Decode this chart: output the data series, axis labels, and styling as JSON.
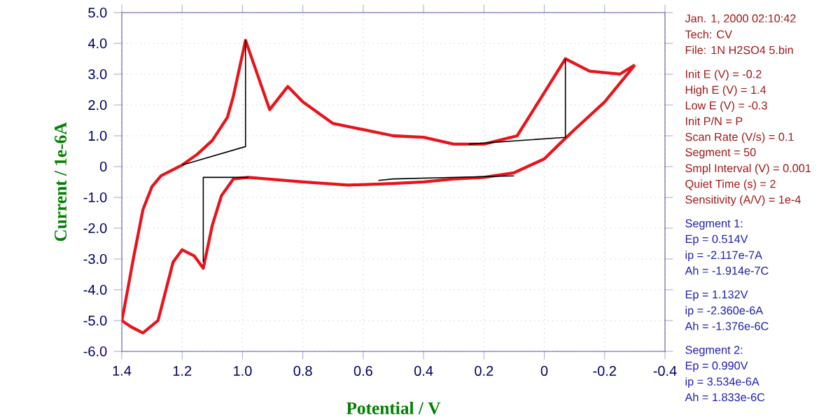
{
  "chart_data": {
    "type": "line",
    "xlabel": "Potential / V",
    "ylabel": "Current / 1e-6A",
    "xlim": [
      1.4,
      -0.4
    ],
    "ylim": [
      -6,
      5
    ],
    "xticks": [
      1.4,
      1.2,
      {
        "value": 1,
        "label": "1.0"
      },
      0.8,
      0.6,
      0.4,
      0.2,
      0,
      -0.2,
      -0.4
    ],
    "yticks": [
      {
        "value": 5,
        "label": "5.0"
      },
      {
        "value": 4,
        "label": "4.0"
      },
      {
        "value": 3,
        "label": "3.0"
      },
      {
        "value": 2,
        "label": "2.0"
      },
      {
        "value": 1,
        "label": "1.0"
      },
      0,
      {
        "value": -1,
        "label": "-1.0"
      },
      {
        "value": -2,
        "label": "-2.0"
      },
      {
        "value": -3,
        "label": "-3.0"
      },
      {
        "value": -4,
        "label": "-4.0"
      },
      {
        "value": -5,
        "label": "-5.0"
      },
      {
        "value": -6,
        "label": "-6.0"
      }
    ],
    "grid": true,
    "series": [
      {
        "color": "#e8141c",
        "x": [
          -0.3,
          -0.25,
          -0.15,
          -0.07,
          0.0,
          0.09,
          0.2,
          0.3,
          0.4,
          0.5,
          0.6,
          0.7,
          0.8,
          0.85,
          0.91,
          0.99,
          1.03,
          1.05,
          1.1,
          1.15,
          1.2,
          1.27,
          1.3,
          1.33,
          1.36,
          1.39,
          1.4
        ],
        "values": [
          3.3,
          3.0,
          3.1,
          3.5,
          2.4,
          1.0,
          0.73,
          0.73,
          0.95,
          1.0,
          1.2,
          1.4,
          2.1,
          2.6,
          1.85,
          4.1,
          2.3,
          1.6,
          0.85,
          0.4,
          0.05,
          -0.3,
          -0.65,
          -1.4,
          -2.9,
          -4.5,
          -5.0
        ]
      },
      {
        "color": "#e8141c",
        "x": [
          1.4,
          1.37,
          1.33,
          1.28,
          1.23,
          1.2,
          1.16,
          1.13,
          1.1,
          1.07,
          1.03,
          0.98,
          0.8,
          0.65,
          0.5,
          0.4,
          0.3,
          0.2,
          0.1,
          0.0,
          -0.05,
          -0.1,
          -0.2,
          -0.3
        ],
        "values": [
          -5.0,
          -5.2,
          -5.4,
          -5.0,
          -3.1,
          -2.7,
          -2.9,
          -3.3,
          -1.9,
          -0.95,
          -0.4,
          -0.35,
          -0.5,
          -0.6,
          -0.55,
          -0.5,
          -0.4,
          -0.35,
          -0.2,
          0.25,
          0.73,
          1.2,
          2.1,
          3.3
        ]
      },
      {
        "color": "#000000",
        "x": [
          1.2,
          0.99,
          0.99
        ],
        "values": [
          0.05,
          0.65,
          4.1
        ]
      },
      {
        "color": "#000000",
        "x": [
          1.13,
          1.13,
          0.98
        ],
        "values": [
          -3.1,
          -0.35,
          -0.35
        ]
      },
      {
        "color": "#000000",
        "x": [
          0.55,
          0.5,
          0.1
        ],
        "values": [
          -0.45,
          -0.4,
          -0.3
        ]
      },
      {
        "color": "#000000",
        "x": [
          0.25,
          -0.07,
          -0.07
        ],
        "values": [
          0.73,
          0.95,
          3.5
        ]
      }
    ],
    "annotations": [
      "Jan. 1, 2000   02:10:42",
      "Tech: CV",
      "File: 1N H2SO4 5.bin",
      "Init E (V) = -0.2",
      "High E (V) = 1.4",
      "Low E (V) = -0.3",
      "Init P/N = P",
      "Scan Rate (V/s) = 0.1",
      "Segment = 50",
      "Smpl Interval (V) = 0.001",
      "Quiet Time (s) = 2",
      "Sensitivity (A/V) = 1e-4",
      "Segment 1:",
      "Ep = 0.514V",
      "ip = -2.117e-7A",
      "Ah = -1.914e-7C",
      "Ep = 1.132V",
      "ip = -2.360e-6A",
      "Ah = -1.376e-6C",
      "Segment 2:",
      "Ep = 0.990V",
      "ip = 3.534e-6A",
      "Ah = 1.833e-6C"
    ]
  }
}
